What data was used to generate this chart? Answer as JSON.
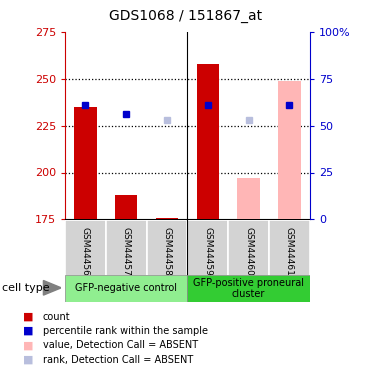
{
  "title": "GDS1068 / 151867_at",
  "samples": [
    "GSM44456",
    "GSM44457",
    "GSM44458*",
    "GSM44459",
    "GSM44460",
    "GSM44461"
  ],
  "bar_values": [
    235,
    188,
    176,
    258,
    null,
    null
  ],
  "bar_absent_values": [
    null,
    null,
    null,
    null,
    197,
    249
  ],
  "blue_square_values": [
    236,
    231,
    null,
    236,
    null,
    236
  ],
  "blue_absent_square_values": [
    null,
    null,
    228,
    null,
    228,
    null
  ],
  "ylim_left": [
    175,
    275
  ],
  "ylim_right": [
    0,
    100
  ],
  "yticks_left": [
    175,
    200,
    225,
    250,
    275
  ],
  "yticks_right": [
    0,
    25,
    50,
    75,
    100
  ],
  "ytick_labels_right": [
    "0",
    "25",
    "50",
    "75",
    "100%"
  ],
  "left_axis_color": "#cc0000",
  "right_axis_color": "#0000cc",
  "legend_items": [
    {
      "color": "#cc0000",
      "label": "count"
    },
    {
      "color": "#0000cc",
      "label": "percentile rank within the sample"
    },
    {
      "color": "#ffb6b6",
      "label": "value, Detection Call = ABSENT"
    },
    {
      "color": "#b8bedd",
      "label": "rank, Detection Call = ABSENT"
    }
  ],
  "cell_type_label": "cell type",
  "bar_width": 0.55,
  "absent_bar_color": "#ffb6b6",
  "absent_rank_color": "#b8bedd",
  "bar_bottom": 175,
  "group1_color": "#90ee90",
  "group2_color": "#33cc33",
  "group1_label": "GFP-negative control",
  "group2_label": "GFP-positive proneural\ncluster",
  "grid_dotted_values": [
    200,
    225,
    250
  ],
  "bg_color": "#ffffff"
}
